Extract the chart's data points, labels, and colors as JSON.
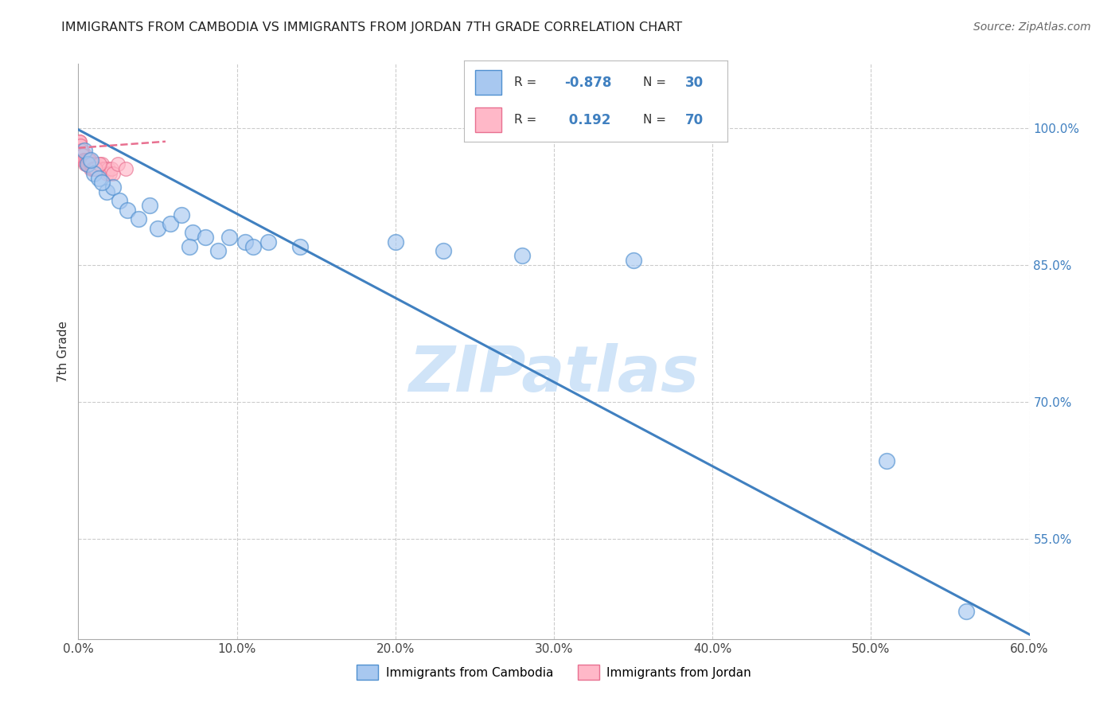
{
  "title": "IMMIGRANTS FROM CAMBODIA VS IMMIGRANTS FROM JORDAN 7TH GRADE CORRELATION CHART",
  "source": "Source: ZipAtlas.com",
  "ylabel": "7th Grade",
  "x_tick_labels": [
    "0.0%",
    "10.0%",
    "20.0%",
    "30.0%",
    "40.0%",
    "50.0%",
    "60.0%"
  ],
  "x_tick_values": [
    0.0,
    10.0,
    20.0,
    30.0,
    40.0,
    50.0,
    60.0
  ],
  "y_tick_labels": [
    "100.0%",
    "85.0%",
    "70.0%",
    "55.0%"
  ],
  "y_tick_values": [
    100.0,
    85.0,
    70.0,
    55.0
  ],
  "xlim": [
    0.0,
    60.0
  ],
  "ylim": [
    44.0,
    107.0
  ],
  "legend_blue_label": "Immigrants from Cambodia",
  "legend_pink_label": "Immigrants from Jordan",
  "legend_R_blue": "-0.878",
  "legend_N_blue": "30",
  "legend_R_pink": "0.192",
  "legend_N_pink": "70",
  "blue_fill_color": "#A8C8F0",
  "blue_edge_color": "#5090D0",
  "pink_fill_color": "#FFB8C8",
  "pink_edge_color": "#E87090",
  "blue_line_color": "#4080C0",
  "pink_line_color": "#E06080",
  "watermark_color": "#D0E4F8",
  "blue_scatter_x": [
    0.4,
    0.6,
    1.0,
    1.3,
    1.8,
    2.2,
    2.6,
    3.1,
    0.8,
    1.5,
    3.8,
    4.5,
    5.0,
    5.8,
    6.5,
    7.2,
    8.0,
    9.5,
    10.5,
    12.0,
    7.0,
    8.8,
    11.0,
    14.0,
    20.0,
    23.0,
    28.0,
    35.0,
    51.0,
    56.0
  ],
  "blue_scatter_y": [
    97.5,
    96.0,
    95.0,
    94.5,
    93.0,
    93.5,
    92.0,
    91.0,
    96.5,
    94.0,
    90.0,
    91.5,
    89.0,
    89.5,
    90.5,
    88.5,
    88.0,
    88.0,
    87.5,
    87.5,
    87.0,
    86.5,
    87.0,
    87.0,
    87.5,
    86.5,
    86.0,
    85.5,
    63.5,
    47.0
  ],
  "pink_scatter_x": [
    0.05,
    0.08,
    0.1,
    0.12,
    0.15,
    0.18,
    0.2,
    0.22,
    0.25,
    0.28,
    0.3,
    0.32,
    0.35,
    0.38,
    0.4,
    0.42,
    0.45,
    0.48,
    0.5,
    0.52,
    0.55,
    0.58,
    0.62,
    0.65,
    0.7,
    0.72,
    0.75,
    0.8,
    0.85,
    0.9,
    0.95,
    1.0,
    1.05,
    1.1,
    1.15,
    1.2,
    1.3,
    1.4,
    1.5,
    1.6,
    1.7,
    1.8,
    1.9,
    2.0,
    2.1,
    2.2,
    0.07,
    0.13,
    0.17,
    0.23,
    0.27,
    0.33,
    0.37,
    0.43,
    0.47,
    0.53,
    0.57,
    0.63,
    0.67,
    0.73,
    0.78,
    0.83,
    0.88,
    0.93,
    0.98,
    1.03,
    1.08,
    1.35,
    2.5,
    3.0
  ],
  "pink_scatter_y": [
    98.5,
    98.0,
    98.5,
    97.5,
    98.0,
    97.0,
    97.5,
    97.0,
    97.5,
    96.5,
    97.0,
    96.5,
    97.0,
    96.5,
    96.5,
    97.0,
    96.5,
    96.5,
    96.5,
    96.0,
    96.5,
    96.0,
    96.5,
    96.0,
    96.0,
    96.5,
    96.0,
    95.5,
    96.0,
    95.5,
    95.5,
    96.0,
    95.5,
    96.0,
    95.5,
    95.5,
    96.0,
    95.5,
    96.0,
    95.5,
    95.5,
    95.0,
    95.5,
    95.0,
    95.5,
    95.0,
    98.5,
    98.0,
    97.5,
    97.0,
    97.0,
    96.5,
    96.5,
    96.0,
    96.5,
    96.0,
    96.5,
    96.0,
    96.5,
    96.0,
    96.0,
    96.0,
    95.5,
    95.5,
    95.5,
    95.5,
    95.5,
    96.0,
    96.0,
    95.5
  ],
  "blue_trendline_x0": 0.0,
  "blue_trendline_y0": 99.8,
  "blue_trendline_x1": 60.0,
  "blue_trendline_y1": 44.5,
  "pink_trendline_x0": 0.0,
  "pink_trendline_y0": 97.8,
  "pink_trendline_x1": 5.5,
  "pink_trendline_y1": 98.5
}
